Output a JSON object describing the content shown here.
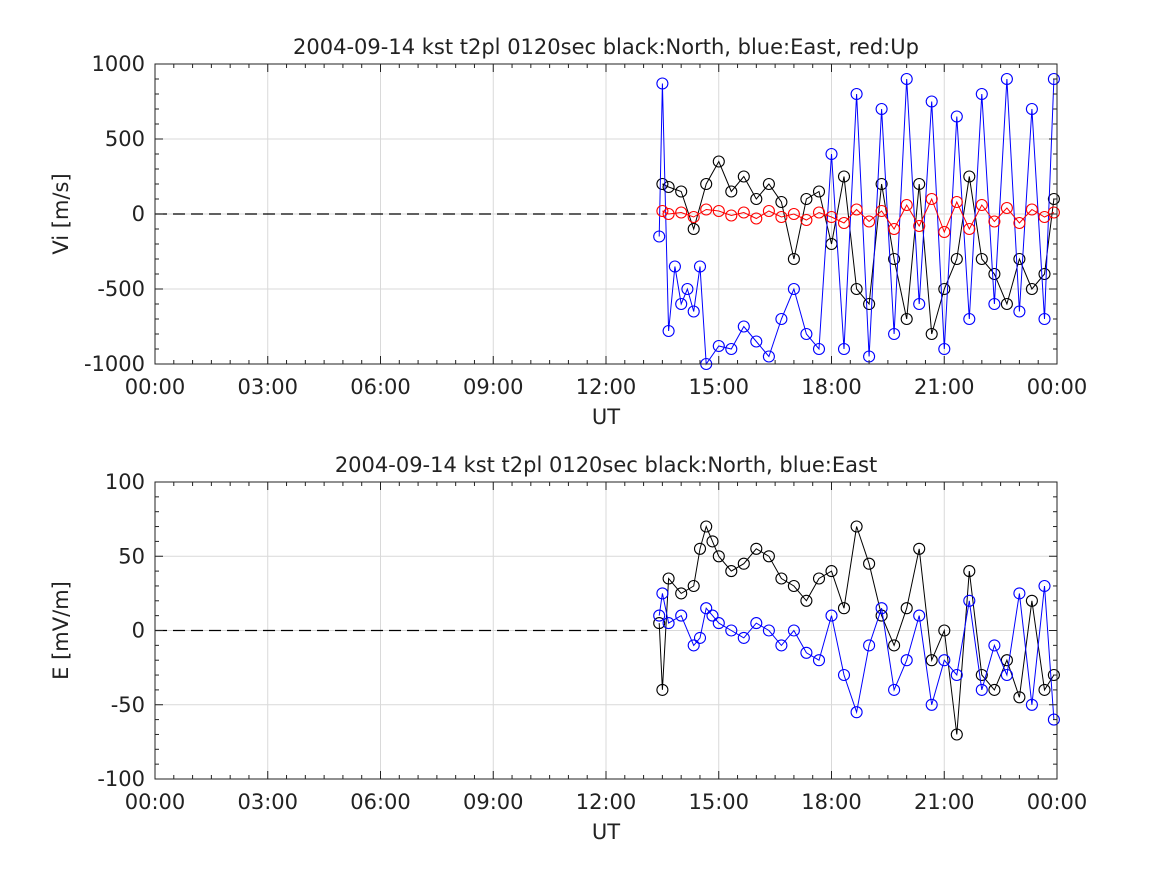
{
  "colors": {
    "north": "#000000",
    "east": "#0000ff",
    "up": "#ff0000",
    "grid": "#d9d9d9",
    "axis": "#222222"
  },
  "chart_data": [
    {
      "type": "scatter",
      "title": "2004-09-14 kst t2pl 0120sec black:North, blue:East, red:Up",
      "xlabel": "UT",
      "ylabel": "Vi [m/s]",
      "xlim_hours": [
        0,
        24
      ],
      "ylim": [
        -1000,
        1000
      ],
      "xticks": [
        "00:00",
        "03:00",
        "06:00",
        "09:00",
        "12:00",
        "15:00",
        "18:00",
        "21:00",
        "00:00"
      ],
      "yticks": [
        "1000",
        "500",
        "0",
        "-500",
        "-1000"
      ],
      "ytick_values": [
        1000,
        500,
        0,
        -500,
        -1000
      ],
      "grid": true,
      "zero_line": "dashed",
      "marker": "circle",
      "series": [
        {
          "name": "North",
          "color": "#000000",
          "x": [
            "13:30",
            "13:40",
            "14:00",
            "14:20",
            "14:40",
            "15:00",
            "15:20",
            "15:40",
            "16:00",
            "16:20",
            "16:40",
            "17:00",
            "17:20",
            "17:40",
            "18:00",
            "18:20",
            "18:40",
            "19:00",
            "19:20",
            "19:40",
            "20:00",
            "20:20",
            "20:40",
            "21:00",
            "21:20",
            "21:40",
            "22:00",
            "22:20",
            "22:40",
            "23:00",
            "23:20",
            "23:40",
            "23:55"
          ],
          "values": [
            200,
            180,
            150,
            -100,
            200,
            350,
            150,
            250,
            100,
            200,
            80,
            -300,
            100,
            150,
            -200,
            250,
            -500,
            -600,
            200,
            -300,
            -700,
            200,
            -800,
            -500,
            -300,
            250,
            -300,
            -400,
            -600,
            -300,
            -500,
            -400,
            100
          ]
        },
        {
          "name": "East",
          "color": "#0000ff",
          "x": [
            "13:25",
            "13:30",
            "13:40",
            "13:50",
            "14:00",
            "14:10",
            "14:20",
            "14:30",
            "14:40",
            "15:00",
            "15:20",
            "15:40",
            "16:00",
            "16:20",
            "16:40",
            "17:00",
            "17:20",
            "17:40",
            "18:00",
            "18:20",
            "18:40",
            "19:00",
            "19:20",
            "19:40",
            "20:00",
            "20:20",
            "20:40",
            "21:00",
            "21:20",
            "21:40",
            "22:00",
            "22:20",
            "22:40",
            "23:00",
            "23:20",
            "23:40",
            "23:55"
          ],
          "values": [
            -150,
            870,
            -780,
            -350,
            -600,
            -500,
            -650,
            -350,
            -1000,
            -880,
            -900,
            -750,
            -850,
            -950,
            -700,
            -500,
            -800,
            -900,
            400,
            -900,
            800,
            -950,
            700,
            -800,
            900,
            -600,
            750,
            -900,
            650,
            -700,
            800,
            -600,
            900,
            -650,
            700,
            -700,
            900
          ]
        },
        {
          "name": "Up",
          "color": "#ff0000",
          "x": [
            "13:30",
            "13:40",
            "14:00",
            "14:20",
            "14:40",
            "15:00",
            "15:20",
            "15:40",
            "16:00",
            "16:20",
            "16:40",
            "17:00",
            "17:20",
            "17:40",
            "18:00",
            "18:20",
            "18:40",
            "19:00",
            "19:20",
            "19:40",
            "20:00",
            "20:20",
            "20:40",
            "21:00",
            "21:20",
            "21:40",
            "22:00",
            "22:20",
            "22:40",
            "23:00",
            "23:20",
            "23:40",
            "23:55"
          ],
          "values": [
            20,
            0,
            10,
            -20,
            30,
            20,
            -10,
            10,
            -30,
            20,
            -20,
            0,
            -40,
            10,
            -20,
            -60,
            30,
            -50,
            20,
            -100,
            60,
            -80,
            100,
            -120,
            80,
            -100,
            60,
            -50,
            40,
            -60,
            30,
            -20,
            10
          ]
        }
      ]
    },
    {
      "type": "scatter",
      "title": "2004-09-14 kst t2pl 0120sec black:North, blue:East",
      "xlabel": "UT",
      "ylabel": "E [mV/m]",
      "xlim_hours": [
        0,
        24
      ],
      "ylim": [
        -100,
        100
      ],
      "xticks": [
        "00:00",
        "03:00",
        "06:00",
        "09:00",
        "12:00",
        "15:00",
        "18:00",
        "21:00",
        "00:00"
      ],
      "yticks": [
        "100",
        "50",
        "0",
        "-50",
        "-100"
      ],
      "ytick_values": [
        100,
        50,
        0,
        -50,
        -100
      ],
      "grid": true,
      "zero_line": "dashed",
      "marker": "circle",
      "series": [
        {
          "name": "North",
          "color": "#000000",
          "x": [
            "13:25",
            "13:30",
            "13:40",
            "14:00",
            "14:20",
            "14:30",
            "14:40",
            "14:50",
            "15:00",
            "15:20",
            "15:40",
            "16:00",
            "16:20",
            "16:40",
            "17:00",
            "17:20",
            "17:40",
            "18:00",
            "18:20",
            "18:40",
            "19:00",
            "19:20",
            "19:40",
            "20:00",
            "20:20",
            "20:40",
            "21:00",
            "21:20",
            "21:40",
            "22:00",
            "22:20",
            "22:40",
            "23:00",
            "23:20",
            "23:40",
            "23:55"
          ],
          "values": [
            5,
            -40,
            35,
            25,
            30,
            55,
            70,
            60,
            50,
            40,
            45,
            55,
            50,
            35,
            30,
            20,
            35,
            40,
            15,
            70,
            45,
            10,
            -10,
            15,
            55,
            -20,
            0,
            -70,
            40,
            -30,
            -40,
            -20,
            -45,
            20,
            -40,
            -30
          ]
        },
        {
          "name": "East",
          "color": "#0000ff",
          "x": [
            "13:25",
            "13:30",
            "13:40",
            "14:00",
            "14:20",
            "14:30",
            "14:40",
            "14:50",
            "15:00",
            "15:20",
            "15:40",
            "16:00",
            "16:20",
            "16:40",
            "17:00",
            "17:20",
            "17:40",
            "18:00",
            "18:20",
            "18:40",
            "19:00",
            "19:20",
            "19:40",
            "20:00",
            "20:20",
            "20:40",
            "21:00",
            "21:20",
            "21:40",
            "22:00",
            "22:20",
            "22:40",
            "23:00",
            "23:20",
            "23:40",
            "23:55"
          ],
          "values": [
            10,
            25,
            5,
            10,
            -10,
            -5,
            15,
            10,
            5,
            0,
            -5,
            5,
            0,
            -10,
            0,
            -15,
            -20,
            10,
            -30,
            -55,
            -10,
            15,
            -40,
            -20,
            10,
            -50,
            -20,
            -30,
            20,
            -40,
            -10,
            -30,
            25,
            -50,
            30,
            -60
          ]
        }
      ]
    }
  ]
}
